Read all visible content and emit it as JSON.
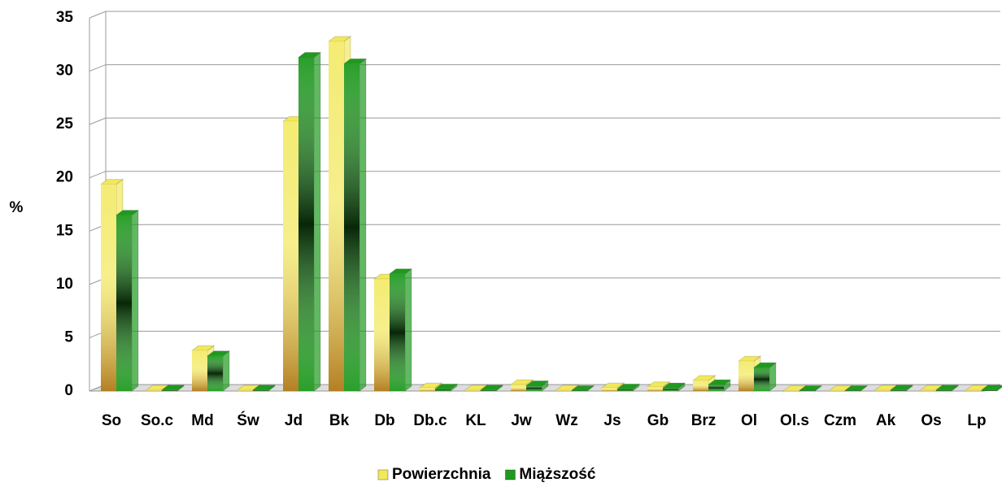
{
  "chart_data": {
    "type": "bar",
    "y_label": "%",
    "categories": [
      "So",
      "So.c",
      "Md",
      "Św",
      "Jd",
      "Bk",
      "Db",
      "Db.c",
      "KL",
      "Jw",
      "Wz",
      "Js",
      "Gb",
      "Brz",
      "Ol",
      "Ol.s",
      "Czm",
      "Ak",
      "Os",
      "Lp"
    ],
    "series": [
      {
        "name": "Powierzchnia",
        "color": "#f2e85a",
        "values": [
          19.4,
          0.1,
          3.8,
          0.1,
          25.3,
          32.8,
          10.5,
          0.3,
          0.1,
          0.6,
          0.1,
          0.3,
          0.4,
          1.0,
          2.8,
          0.05,
          0.05,
          0.1,
          0.1,
          0.1
        ]
      },
      {
        "name": "Miąższość",
        "color": "#1f9a1f",
        "values": [
          16.5,
          0.1,
          3.3,
          0.1,
          31.3,
          30.7,
          11.0,
          0.2,
          0.1,
          0.5,
          0.05,
          0.2,
          0.3,
          0.6,
          2.2,
          0.05,
          0.05,
          0.1,
          0.1,
          0.1
        ]
      }
    ],
    "ylim": [
      0,
      35
    ],
    "yticks": [
      0,
      5,
      10,
      15,
      20,
      25,
      30,
      35
    ],
    "grid": true,
    "legend": "bottom"
  }
}
